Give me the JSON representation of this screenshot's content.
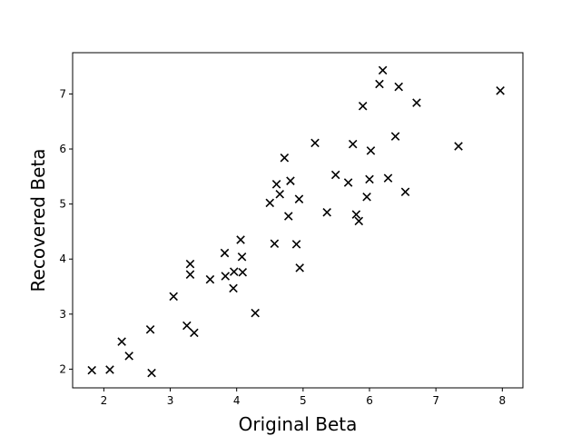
{
  "chart_data": {
    "type": "scatter",
    "title": "",
    "xlabel": "Original Beta",
    "ylabel": "Recovered Beta",
    "xlim": [
      1.53,
      8.31
    ],
    "ylim": [
      1.66,
      7.75
    ],
    "xticks": [
      2,
      3,
      4,
      5,
      6,
      7,
      8
    ],
    "yticks": [
      2,
      3,
      4,
      5,
      6,
      7
    ],
    "xtick_labels": [
      "2",
      "3",
      "4",
      "5",
      "6",
      "7",
      "8"
    ],
    "ytick_labels": [
      "2",
      "3",
      "4",
      "5",
      "6",
      "7"
    ],
    "marker": "x",
    "color": "#000000",
    "grid": false,
    "series": [
      {
        "points": [
          [
            1.82,
            1.98
          ],
          [
            2.09,
            1.99
          ],
          [
            2.27,
            2.5
          ],
          [
            2.38,
            2.24
          ],
          [
            2.7,
            2.72
          ],
          [
            2.72,
            1.93
          ],
          [
            3.05,
            3.32
          ],
          [
            3.25,
            2.79
          ],
          [
            3.3,
            3.91
          ],
          [
            3.3,
            3.72
          ],
          [
            3.36,
            2.66
          ],
          [
            3.6,
            3.63
          ],
          [
            3.82,
            4.11
          ],
          [
            3.83,
            3.69
          ],
          [
            3.95,
            3.47
          ],
          [
            3.96,
            3.77
          ],
          [
            4.06,
            4.35
          ],
          [
            4.08,
            4.04
          ],
          [
            4.09,
            3.76
          ],
          [
            4.28,
            3.02
          ],
          [
            4.5,
            5.02
          ],
          [
            4.57,
            4.28
          ],
          [
            4.6,
            5.36
          ],
          [
            4.65,
            5.18
          ],
          [
            4.72,
            5.84
          ],
          [
            4.78,
            4.78
          ],
          [
            4.81,
            5.42
          ],
          [
            4.9,
            4.27
          ],
          [
            4.94,
            5.09
          ],
          [
            4.95,
            3.84
          ],
          [
            5.18,
            6.11
          ],
          [
            5.36,
            4.85
          ],
          [
            5.49,
            5.53
          ],
          [
            5.68,
            5.39
          ],
          [
            5.75,
            6.09
          ],
          [
            5.8,
            4.81
          ],
          [
            5.84,
            4.69
          ],
          [
            5.9,
            6.78
          ],
          [
            5.96,
            5.13
          ],
          [
            6.0,
            5.45
          ],
          [
            6.02,
            5.97
          ],
          [
            6.15,
            7.18
          ],
          [
            6.2,
            7.43
          ],
          [
            6.28,
            5.47
          ],
          [
            6.39,
            6.23
          ],
          [
            6.44,
            7.13
          ],
          [
            6.54,
            5.22
          ],
          [
            6.71,
            6.84
          ],
          [
            7.34,
            6.05
          ],
          [
            7.97,
            7.06
          ]
        ]
      }
    ]
  }
}
